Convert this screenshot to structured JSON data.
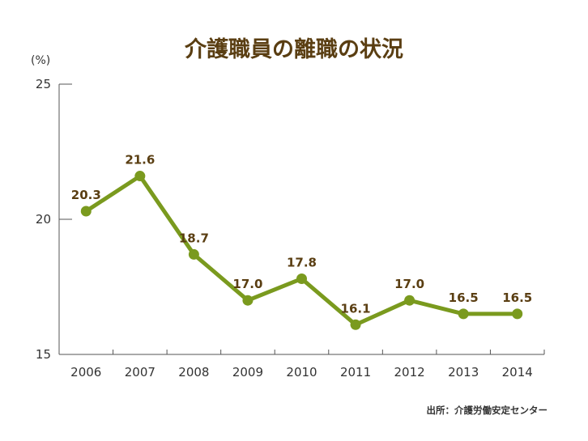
{
  "chart_data": {
    "type": "line",
    "title": "介護職員の離職の状況",
    "y_unit": "(%)",
    "categories": [
      "2006",
      "2007",
      "2008",
      "2009",
      "2010",
      "2011",
      "2012",
      "2013",
      "2014"
    ],
    "series": [
      {
        "values": [
          20.3,
          21.6,
          18.7,
          17.0,
          17.8,
          16.1,
          17.0,
          16.5,
          16.5
        ],
        "labels": [
          "20.3",
          "21.6",
          "18.7",
          "17.0",
          "17.8",
          "16.1",
          "17.0",
          "16.5",
          "16.5"
        ],
        "color": "#7a9a1e"
      }
    ],
    "ylim": [
      15,
      25
    ],
    "yticks": [
      "15",
      "20",
      "25"
    ],
    "grid": false,
    "source": "出所：介護労働安定センター"
  },
  "colors": {
    "title": "#5a3e12",
    "data_label": "#5a3e12",
    "axis": "#555555",
    "line": "#7a9a1e"
  }
}
